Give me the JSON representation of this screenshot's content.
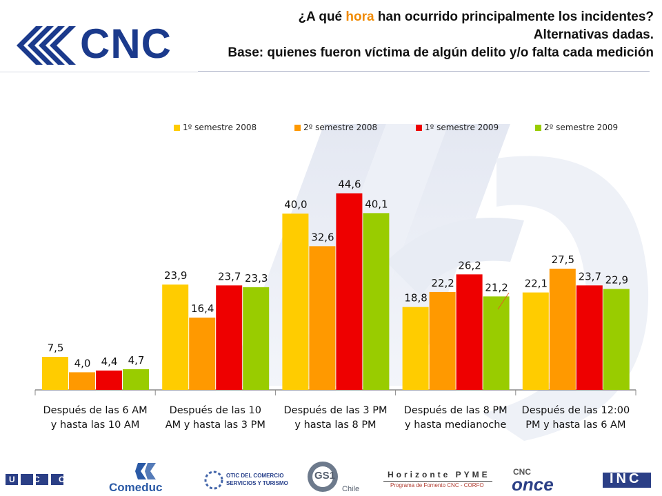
{
  "header": {
    "title_part1": "¿A qué ",
    "title_highlight": "hora",
    "title_part2": " han ocurrido principalmente los incidentes?",
    "line2": "Alternativas dadas.",
    "line3": "Base: quienes fueron víctima de algún delito y/o falta cada medición"
  },
  "logo": {
    "text": "CNC",
    "icon": "cnc-stripes-logo-icon"
  },
  "colors": {
    "s1": "#ffcc00",
    "s2": "#ff9900",
    "s3": "#ee0000",
    "s4": "#99cc00",
    "highlight": "#f08a00",
    "brand": "#1b3a8c"
  },
  "chart_data": {
    "type": "bar",
    "categories": [
      [
        "Después de las 6 AM",
        "y hasta las 10 AM"
      ],
      [
        "Después de las 10",
        "AM y hasta las 3 PM"
      ],
      [
        "Después de las 3 PM",
        "y hasta las 8 PM"
      ],
      [
        "Después de las 8 PM",
        "y hasta medianoche"
      ],
      [
        "Después de las 12:00",
        "PM y hasta las 6 AM"
      ]
    ],
    "series": [
      {
        "name": "1º semestre 2008",
        "values": [
          7.5,
          23.9,
          40.0,
          18.8,
          22.1
        ],
        "labels": [
          "7,5",
          "23,9",
          "40,0",
          "18,8",
          "22,1"
        ]
      },
      {
        "name": "2º semestre 2008",
        "values": [
          4.0,
          16.4,
          32.6,
          22.2,
          27.5
        ],
        "labels": [
          "4,0",
          "16,4",
          "32,6",
          "22,2",
          "27,5"
        ]
      },
      {
        "name": "1º semestre 2009",
        "values": [
          4.4,
          23.7,
          44.6,
          26.2,
          23.7
        ],
        "labels": [
          "4,4",
          "23,7",
          "44,6",
          "26,2",
          "23,7"
        ]
      },
      {
        "name": "2º semestre 2009",
        "values": [
          4.7,
          23.3,
          40.1,
          21.2,
          22.9
        ],
        "labels": [
          "4,7",
          "23,3",
          "40,1",
          "21,2",
          "22,9"
        ]
      }
    ],
    "ylim": [
      0,
      50
    ],
    "legend_position": "top",
    "grid": false
  },
  "footer": {
    "ucco": "U C C O",
    "comeduc": "Comeduc",
    "otic_line1": "OTIC DEL COMERCIO",
    "otic_line2": "SERVICIOS Y TURISMO",
    "gs1": "GS1",
    "gs1_country": "Chile",
    "horizonte_title": "Horizonte PYME",
    "horizonte_sub": "Programa de Fomento CNC - CORFO",
    "cnc_small": "CNC",
    "once": "once",
    "inc": "INC"
  }
}
